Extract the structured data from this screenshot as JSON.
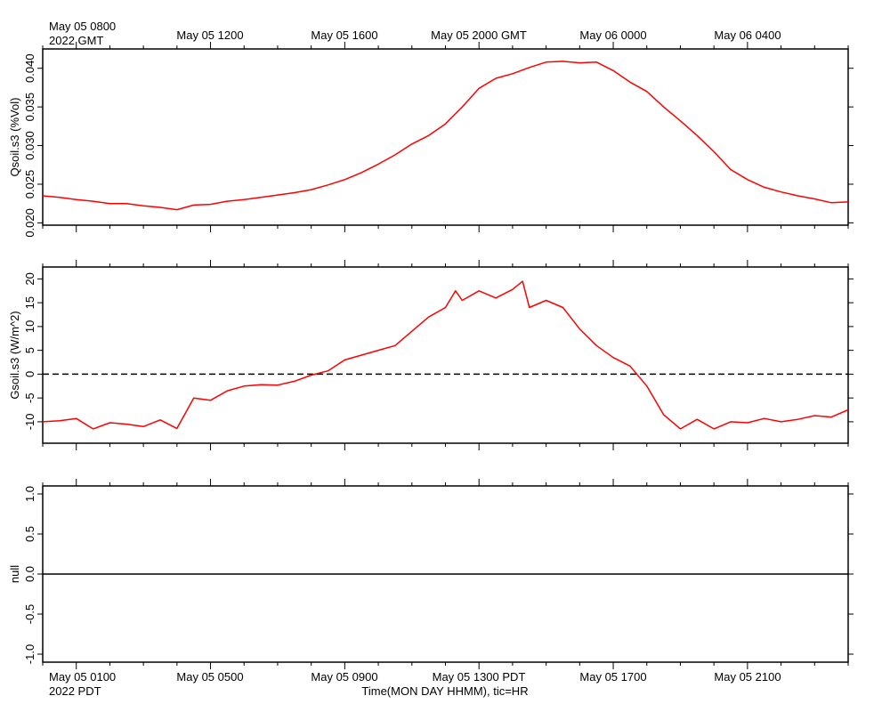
{
  "top_axis": {
    "first_label_line1": "May 05 0800",
    "first_label_line2": "2022 GMT",
    "labels": [
      "May 05 1200",
      "May 05 1600",
      "May 05 2000 GMT",
      "May 06 0000",
      "May 06 0400"
    ]
  },
  "bottom_axis": {
    "first_label_line1": "May 05 0100",
    "first_label_line2": "2022 PDT",
    "labels": [
      "May 05 0500",
      "May 05 0900",
      "May 05 1300 PDT",
      "May 05 1700",
      "May 05 2100"
    ],
    "title": "Time(MON DAY HHMM), tic=HR"
  },
  "colors": {
    "series": "#ff0000",
    "axis": "#000000",
    "zero_line": "#000000"
  },
  "chart_data": [
    {
      "type": "line",
      "title": "",
      "xlabel": "Time(MON DAY HHMM), tic=HR",
      "ylabel": "Qsoil.s3 (%Vol)",
      "x_unit": "hours since May 05 0000 PDT",
      "xlim": [
        0.0,
        24.0
      ],
      "ylim": [
        0.0197,
        0.0425
      ],
      "yticks": [
        0.02,
        0.025,
        0.03,
        0.035,
        0.04
      ],
      "ytick_labels": [
        "0.020",
        "0.025",
        "0.030",
        "0.035",
        "0.040"
      ],
      "series": [
        {
          "name": "Qsoil.s3",
          "x": [
            0.0,
            0.5,
            1.0,
            1.5,
            2.0,
            2.5,
            3.0,
            3.5,
            4.0,
            4.5,
            5.0,
            5.5,
            6.0,
            6.5,
            7.0,
            7.5,
            8.0,
            8.5,
            9.0,
            9.5,
            10.0,
            10.5,
            11.0,
            11.5,
            12.0,
            12.5,
            13.0,
            13.5,
            14.0,
            14.5,
            15.0,
            15.5,
            16.0,
            16.5,
            17.0,
            17.5,
            18.0,
            18.5,
            19.0,
            19.5,
            20.0,
            20.5,
            21.0,
            21.5,
            22.0,
            22.5,
            23.0,
            23.5,
            24.0
          ],
          "y": [
            0.0235,
            0.0233,
            0.023,
            0.0228,
            0.0225,
            0.0225,
            0.0222,
            0.022,
            0.0217,
            0.0223,
            0.0224,
            0.0228,
            0.023,
            0.0233,
            0.0236,
            0.0239,
            0.0243,
            0.0249,
            0.0256,
            0.0265,
            0.0276,
            0.0288,
            0.0302,
            0.0313,
            0.0328,
            0.035,
            0.0374,
            0.0387,
            0.0393,
            0.0401,
            0.0408,
            0.0409,
            0.0407,
            0.0408,
            0.0397,
            0.0382,
            0.037,
            0.035,
            0.0332,
            0.0313,
            0.0292,
            0.0269,
            0.0256,
            0.0246,
            0.024,
            0.0235,
            0.0231,
            0.0226,
            0.0227
          ]
        }
      ]
    },
    {
      "type": "line",
      "title": "",
      "xlabel": "Time(MON DAY HHMM), tic=HR",
      "ylabel": "Gsoil.s3 (W/m^2)",
      "x_unit": "hours since May 05 0000 PDT",
      "xlim": [
        0.0,
        24.0
      ],
      "ylim": [
        -14.5,
        22.5
      ],
      "yticks": [
        -10,
        -5,
        0,
        5,
        10,
        15,
        20
      ],
      "ytick_labels": [
        "-10",
        "-5",
        "0",
        "5",
        "10",
        "15",
        "20"
      ],
      "reference_line": {
        "y": 0,
        "style": "dashed"
      },
      "series": [
        {
          "name": "Gsoil.s3",
          "x": [
            0.0,
            0.5,
            1.0,
            1.5,
            2.0,
            2.5,
            3.0,
            3.5,
            4.0,
            4.5,
            5.0,
            5.5,
            6.0,
            6.5,
            7.0,
            7.5,
            8.0,
            8.5,
            9.0,
            9.5,
            10.0,
            10.5,
            11.0,
            11.5,
            12.0,
            12.3,
            12.5,
            13.0,
            13.5,
            14.0,
            14.3,
            14.5,
            15.0,
            15.5,
            16.0,
            16.5,
            17.0,
            17.5,
            18.0,
            18.5,
            19.0,
            19.5,
            20.0,
            20.5,
            21.0,
            21.5,
            22.0,
            22.5,
            23.0,
            23.5,
            24.0
          ],
          "y": [
            -10.0,
            -9.8,
            -9.3,
            -11.5,
            -10.2,
            -10.5,
            -11.0,
            -9.6,
            -11.4,
            -5.0,
            -5.5,
            -3.5,
            -2.5,
            -2.2,
            -2.3,
            -1.5,
            -0.2,
            0.7,
            3.0,
            4.0,
            5.0,
            6.0,
            9.0,
            12.0,
            14.0,
            17.5,
            15.5,
            17.5,
            16.0,
            17.8,
            19.5,
            14.0,
            15.5,
            14.0,
            9.5,
            6.0,
            3.5,
            1.7,
            -2.5,
            -8.5,
            -11.5,
            -9.5,
            -11.5,
            -10.0,
            -10.2,
            -9.3,
            -10.0,
            -9.5,
            -8.7,
            -9.0,
            -7.5
          ]
        }
      ]
    },
    {
      "type": "line",
      "title": "",
      "xlabel": "Time(MON DAY HHMM), tic=HR",
      "ylabel": "null",
      "x_unit": "hours since May 05 0000 PDT",
      "xlim": [
        0.0,
        24.0
      ],
      "ylim": [
        -1.1,
        1.1
      ],
      "yticks": [
        -1.0,
        -0.5,
        0.0,
        0.5,
        1.0
      ],
      "ytick_labels": [
        "-1.0",
        "-0.5",
        "0.0",
        "0.5",
        "1.0"
      ],
      "series": [
        {
          "name": "null",
          "x": [
            0.0,
            24.0
          ],
          "y": [
            0.0,
            0.0
          ]
        }
      ]
    }
  ]
}
